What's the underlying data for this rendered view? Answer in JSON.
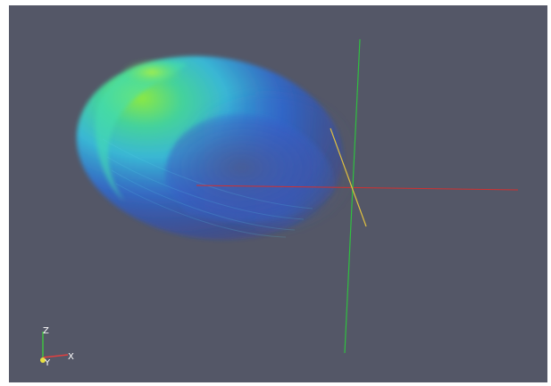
{
  "viewport": {
    "background": "#545767"
  },
  "scene": {
    "volume_render": {
      "colormap": [
        "#1a32c8",
        "#2a6fe0",
        "#35c8e8",
        "#43e0a0",
        "#8ff040"
      ]
    },
    "center_axes": {
      "x_color": "#d23030",
      "y_color": "#e0c040",
      "z_color": "#30c040"
    }
  },
  "orientation_widget": {
    "z_label": "Z",
    "y_label": "Y",
    "x_label": "X",
    "z_color": "#40c040",
    "y_color": "#e8e040",
    "x_color": "#e04040"
  }
}
